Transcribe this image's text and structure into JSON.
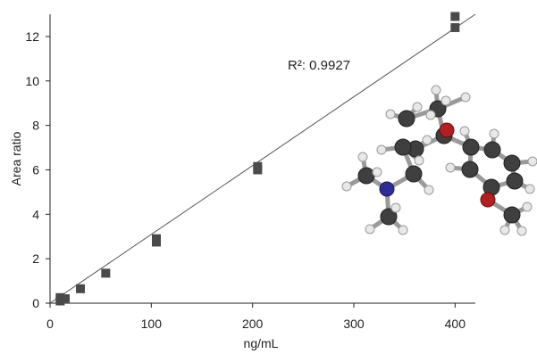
{
  "chart_data": {
    "type": "scatter",
    "xlabel": "ng/mL",
    "ylabel": "Area ratio",
    "xlim": [
      0,
      420
    ],
    "ylim": [
      0,
      13
    ],
    "x_ticks": [
      0,
      100,
      200,
      300,
      400
    ],
    "y_ticks": [
      0,
      2,
      4,
      6,
      8,
      10,
      12
    ],
    "series": [
      {
        "points": [
          {
            "x": 10,
            "y": 0.1
          },
          {
            "x": 10,
            "y": 0.25
          },
          {
            "x": 15,
            "y": 0.2
          },
          {
            "x": 30,
            "y": 0.65
          },
          {
            "x": 55,
            "y": 1.35
          },
          {
            "x": 105,
            "y": 2.75
          },
          {
            "x": 105,
            "y": 2.9
          },
          {
            "x": 205,
            "y": 6.0
          },
          {
            "x": 205,
            "y": 6.15
          },
          {
            "x": 400,
            "y": 12.4
          },
          {
            "x": 400,
            "y": 12.9
          }
        ]
      }
    ],
    "fit_line": {
      "x": [
        0,
        420
      ],
      "y": [
        0,
        13.0
      ]
    },
    "annotation": "R²: 0.9927",
    "grid": false,
    "marker_color": "#4a4a4a",
    "line_color": "#555555"
  }
}
